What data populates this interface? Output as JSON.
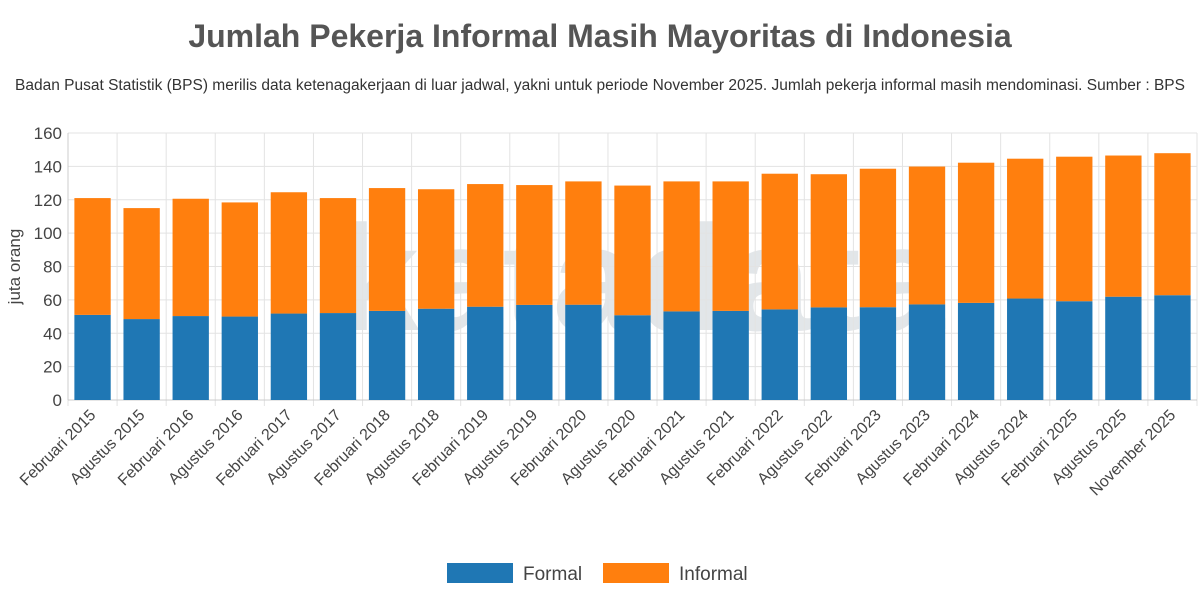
{
  "chart_data": {
    "type": "bar",
    "stacked": true,
    "title": "Jumlah Pekerja Informal Masih Mayoritas di Indonesia",
    "subtitle": "Badan Pusat Statistik (BPS) merilis data ketenagakerjaan di luar jadwal, yakni untuk periode November 2025. Jumlah pekerja informal masih mendominasi. Sumber : BPS",
    "xlabel": "",
    "ylabel": "juta orang",
    "ylim": [
      0,
      160
    ],
    "yticks": [
      0,
      20,
      40,
      60,
      80,
      100,
      120,
      140,
      160
    ],
    "grid": true,
    "legend": "bottom",
    "categories": [
      "Februari 2015",
      "Agustus 2015",
      "Februari 2016",
      "Agustus 2016",
      "Februari 2017",
      "Agustus 2017",
      "Februari 2018",
      "Agustus 2018",
      "Februari 2019",
      "Agustus 2019",
      "Februari 2020",
      "Agustus 2020",
      "Februari 2021",
      "Agustus 2021",
      "Februari 2022",
      "Agustus 2022",
      "Februari 2023",
      "Agustus 2023",
      "Februari 2024",
      "Agustus 2024",
      "Februari 2025",
      "Agustus 2025",
      "November 2025"
    ],
    "series": [
      {
        "name": "Formal",
        "color": "#1f77b4",
        "values": [
          51.0,
          48.5,
          50.3,
          50.0,
          51.8,
          52.1,
          53.4,
          54.7,
          55.9,
          57.0,
          57.1,
          50.8,
          53.1,
          53.4,
          54.3,
          55.5,
          55.6,
          57.3,
          58.2,
          60.8,
          59.2,
          61.9,
          62.8
        ]
      },
      {
        "name": "Informal",
        "color": "#ff7f0e",
        "values": [
          70.0,
          66.5,
          70.3,
          68.4,
          72.7,
          68.9,
          73.6,
          71.6,
          73.5,
          71.8,
          73.9,
          77.7,
          77.9,
          77.6,
          81.3,
          79.8,
          83.0,
          82.6,
          84.0,
          83.8,
          86.6,
          84.6,
          85.1
        ]
      }
    ],
    "watermark": "katadata"
  }
}
